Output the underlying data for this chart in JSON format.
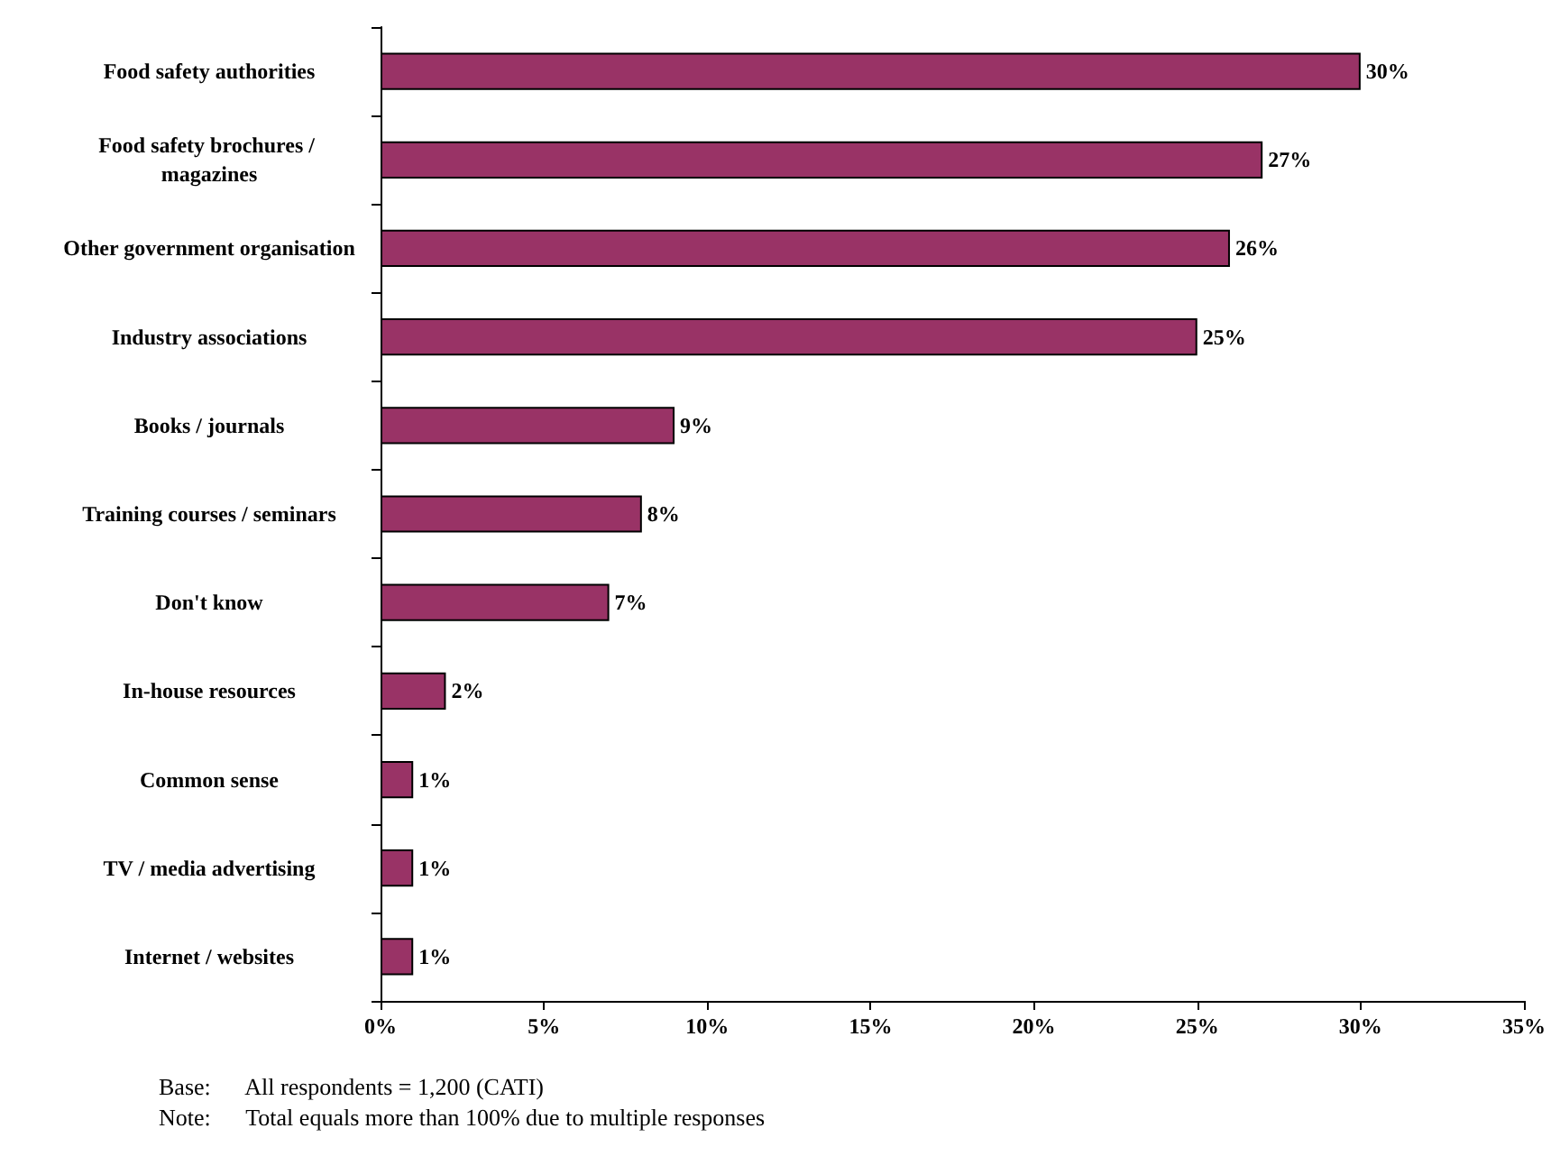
{
  "chart_data": {
    "type": "bar",
    "orientation": "horizontal",
    "categories": [
      "Food safety authorities",
      "Food safety brochures / magazines",
      "Other government organisation",
      "Industry associations",
      "Books / journals",
      "Training courses / seminars",
      "Don't know",
      "In-house resources",
      "Common sense",
      "TV / media advertising",
      "Internet / websites"
    ],
    "values": [
      30,
      27,
      26,
      25,
      9,
      8,
      7,
      2,
      1,
      1,
      1
    ],
    "value_labels": [
      "30%",
      "27%",
      "26%",
      "25%",
      "9%",
      "8%",
      "7%",
      "2%",
      "1%",
      "1%",
      "1%"
    ],
    "color": "#993366",
    "xlim": [
      0,
      35
    ],
    "xticks": [
      {
        "value": 0,
        "label": "0%"
      },
      {
        "value": 5,
        "label": "5%"
      },
      {
        "value": 10,
        "label": "10%"
      },
      {
        "value": 15,
        "label": "15%"
      },
      {
        "value": 20,
        "label": "20%"
      },
      {
        "value": 25,
        "label": "25%"
      },
      {
        "value": 30,
        "label": "30%"
      },
      {
        "value": 35,
        "label": "35%"
      }
    ],
    "grid": false,
    "annotations": [
      "Base:      All respondents = 1,200 (CATI)",
      "Note:      Total equals more than 100% due to multiple responses"
    ]
  }
}
